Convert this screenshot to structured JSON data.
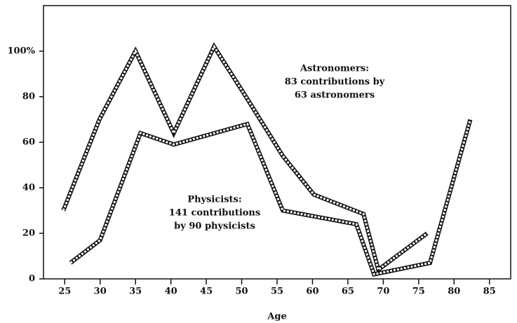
{
  "chart_data": {
    "type": "line",
    "x_label": "Age",
    "xlim": [
      22,
      88
    ],
    "ylim": [
      0,
      120
    ],
    "xticks": [
      25,
      30,
      35,
      40,
      45,
      50,
      55,
      60,
      65,
      70,
      75,
      80,
      85
    ],
    "yticks": [
      0,
      20,
      40,
      60,
      80,
      {
        "value": 100,
        "label": "100%"
      }
    ],
    "series": [
      {
        "name": "Astronomers",
        "color": "#111111",
        "x": [
          24.8,
          29.9,
          35,
          40.4,
          46.1,
          50.8,
          55.8,
          60.2,
          67.2,
          69.3,
          76.2
        ],
        "values": [
          30,
          70,
          100,
          64,
          102,
          79,
          54,
          37,
          28.5,
          4,
          20
        ]
      },
      {
        "name": "Physicists",
        "color": "#111111",
        "x": [
          25.8,
          30,
          35.7,
          40.4,
          50.8,
          55.8,
          66.2,
          68.7,
          76.6,
          82.3
        ],
        "values": [
          7,
          17,
          64,
          59,
          68,
          30,
          24,
          2,
          7,
          70
        ]
      }
    ],
    "annotations": [
      [
        "Astronomers:",
        "83 contributions by",
        "63 astronomers"
      ],
      [
        "Physicists:",
        "141 contributions",
        "by 90 physicists"
      ]
    ]
  }
}
